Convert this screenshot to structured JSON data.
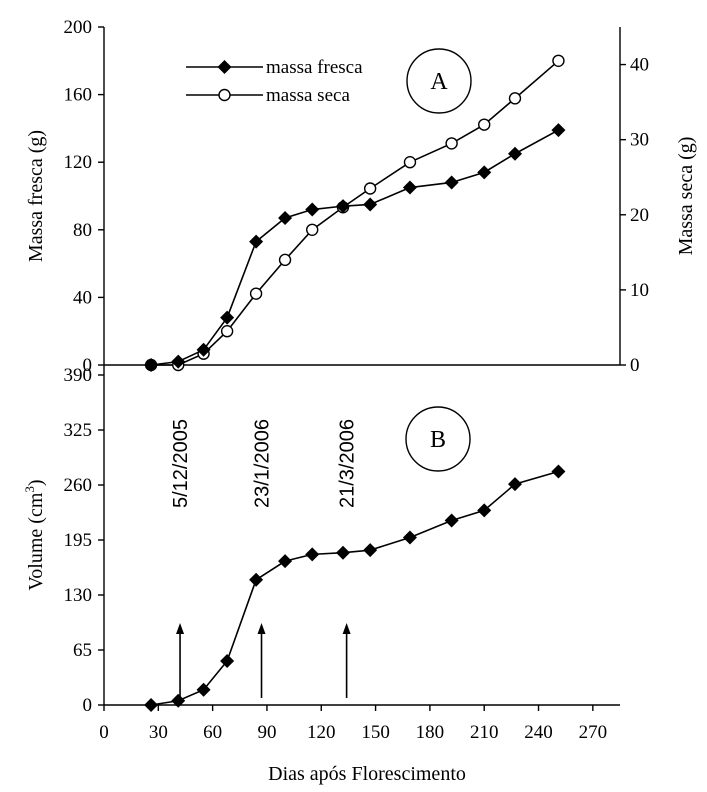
{
  "chart_data": [
    {
      "panel": "A",
      "type": "line",
      "ylabel_left": "Massa fresca (g)",
      "ylabel_right": "Massa seca (g)",
      "ylim_left": [
        0,
        200
      ],
      "ylim_right": [
        0,
        45
      ],
      "yticks_left": [
        0,
        40,
        80,
        120,
        160,
        200
      ],
      "yticks_right": [
        0,
        10,
        20,
        30,
        40
      ],
      "legend_position": "top",
      "series": [
        {
          "name": "massa fresca",
          "axis": "left",
          "marker": "filled-diamond",
          "x": [
            26,
            41,
            55,
            68,
            84,
            100,
            115,
            132,
            147,
            169,
            192,
            210,
            227,
            251
          ],
          "y": [
            0,
            2,
            9,
            28,
            73,
            87,
            92,
            94,
            95,
            105,
            108,
            114,
            125,
            139
          ]
        },
        {
          "name": "massa seca",
          "axis": "right",
          "marker": "open-circle",
          "x": [
            26,
            41,
            55,
            68,
            84,
            100,
            115,
            132,
            147,
            169,
            192,
            210,
            227,
            251
          ],
          "y": [
            0,
            0,
            1.5,
            4.5,
            9.5,
            14,
            18,
            21,
            23.5,
            27,
            29.5,
            32,
            35.5,
            40.5
          ]
        }
      ]
    },
    {
      "panel": "B",
      "type": "line",
      "xlabel": "Dias após Florescimento",
      "ylabel_prefix": "Volume (cm",
      "ylabel_sup": "3",
      "ylabel_suffix": ")",
      "xlim": [
        0,
        285
      ],
      "xticks": [
        0,
        30,
        60,
        90,
        120,
        150,
        180,
        210,
        240,
        270
      ],
      "ylim": [
        0,
        390
      ],
      "yticks": [
        0,
        65,
        130,
        195,
        260,
        325,
        390
      ],
      "series": [
        {
          "marker": "filled-diamond",
          "x": [
            26,
            41,
            55,
            68,
            84,
            100,
            115,
            132,
            147,
            169,
            192,
            210,
            227,
            251
          ],
          "y": [
            0,
            5,
            18,
            52,
            148,
            170,
            178,
            180,
            183,
            198,
            218,
            230,
            261,
            276
          ]
        }
      ],
      "annotations": [
        {
          "label": "5/12/2005",
          "x": 42
        },
        {
          "label": "23/1/2006",
          "x": 87
        },
        {
          "label": "21/3/2006",
          "x": 134
        }
      ]
    }
  ],
  "panel_labels": [
    "A",
    "B"
  ]
}
